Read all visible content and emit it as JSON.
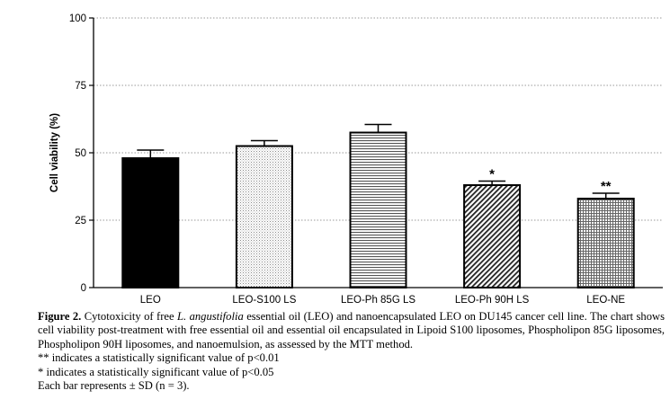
{
  "chart_data": {
    "type": "bar",
    "categories": [
      "LEO",
      "LEO-S100 LS",
      "LEO-Ph 85G LS",
      "LEO-Ph 90H LS",
      "LEO-NE"
    ],
    "values": [
      48,
      52.5,
      57.5,
      38,
      33
    ],
    "errors": [
      3,
      2,
      3,
      1.5,
      2
    ],
    "significance": [
      "",
      "",
      "",
      "*",
      "**"
    ],
    "patterns": [
      "solid",
      "dots",
      "horizontal",
      "diagonal",
      "crosshatch"
    ],
    "ylabel": "Cell viability (%)",
    "xlabel": "",
    "ylim": [
      0,
      100
    ],
    "yticks": [
      0,
      25,
      50,
      75,
      100
    ],
    "grid": "dotted horizontal at major ticks",
    "bar_fill": "#000000",
    "bar_outline": "#000000"
  },
  "caption": {
    "figure_label": "Figure 2.",
    "main_before_italic": "Cytotoxicity of free",
    "italic_species": "L. angustifolia",
    "main_after_italic": "essential oil (LEO) and nanoencapsulated LEO on DU145 cancer cell line. The chart shows cell viability post-treatment with free essential oil and essential oil encapsulated in Lipoid S100 liposomes, Phospholipon 85G liposomes, Phospholipon 90H liposomes, and nanoemulsion, as assessed by the MTT method.",
    "note_double": "** indicates a statistically significant value of p<0.01",
    "note_single": "* indicates a statistically significant value of p<0.05",
    "note_sd": "Each bar represents ± SD (n = 3)."
  }
}
